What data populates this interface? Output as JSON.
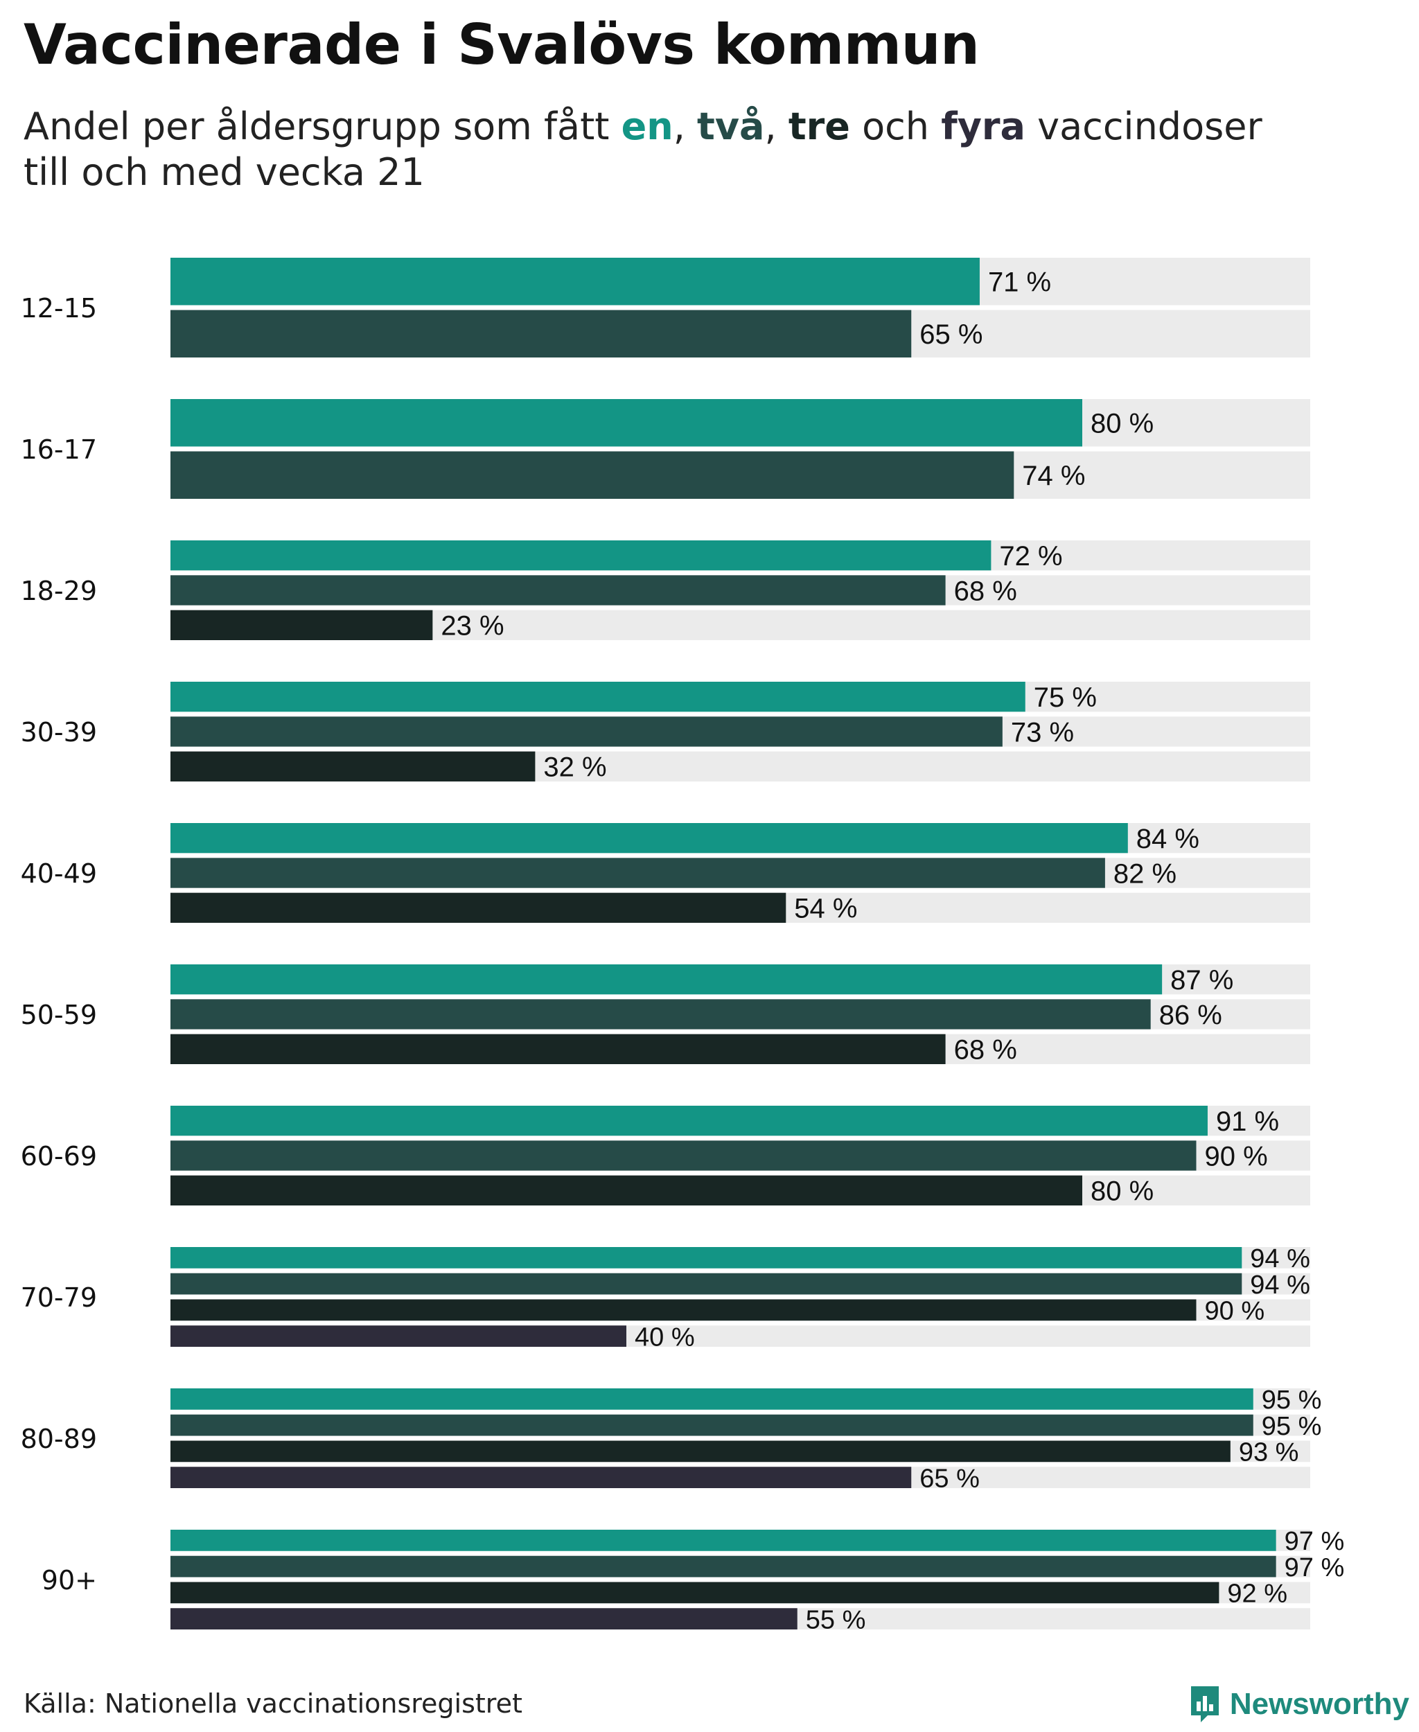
{
  "title": "Vaccinerade i Svalövs kommun",
  "subtitle": {
    "prefix": "Andel per åldersgrupp som fått ",
    "dose1": "en",
    "sep1": ", ",
    "dose2": "två",
    "sep2": ", ",
    "dose3": "tre",
    "mid": " och ",
    "dose4": "fyra",
    "suffix": " vaccindoser",
    "line2": "till och med vecka 21"
  },
  "colors": {
    "dose1": "#139585",
    "dose2": "#264b48",
    "dose3": "#182624",
    "dose4": "#2e2c3b",
    "track": "#ebebeb"
  },
  "source": "Källa: Nationella vaccinationsregistret",
  "logo": {
    "text": "Newsworthy",
    "icon": "newsworthy-logo-icon"
  },
  "chart_data": {
    "type": "bar",
    "orientation": "horizontal",
    "title": "Vaccinerade i Svalövs kommun",
    "xlim": [
      0,
      100
    ],
    "unit": "%",
    "categories": [
      "12-15",
      "16-17",
      "18-29",
      "30-39",
      "40-49",
      "50-59",
      "60-69",
      "70-79",
      "80-89",
      "90+"
    ],
    "series": [
      {
        "name": "en",
        "values": [
          71,
          80,
          72,
          75,
          84,
          87,
          91,
          94,
          95,
          97
        ]
      },
      {
        "name": "två",
        "values": [
          65,
          74,
          68,
          73,
          82,
          86,
          90,
          94,
          95,
          97
        ]
      },
      {
        "name": "tre",
        "values": [
          null,
          null,
          23,
          32,
          54,
          68,
          80,
          90,
          93,
          92
        ]
      },
      {
        "name": "fyra",
        "values": [
          null,
          null,
          null,
          null,
          null,
          null,
          null,
          40,
          65,
          55
        ]
      }
    ]
  }
}
